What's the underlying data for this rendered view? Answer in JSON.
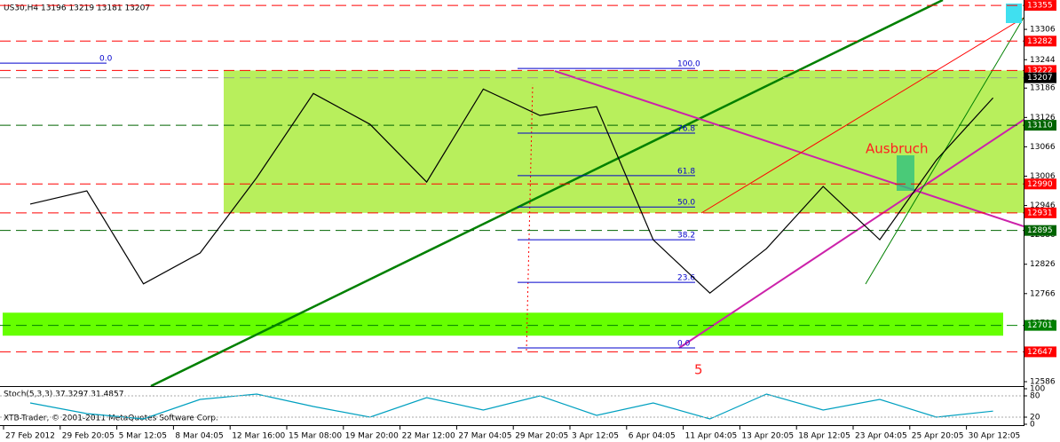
{
  "chart_data": [
    {
      "type": "line",
      "title": "US30,H4  13196 13219 13181 13207",
      "categories": [
        "27 Feb 2012",
        "29 Feb 20:05",
        "5 Mar 12:05",
        "8 Mar 04:05",
        "12 Mar 16:00",
        "15 Mar 08:00",
        "19 Mar 20:00",
        "22 Mar 12:00",
        "27 Mar 04:05",
        "29 Mar 20:05",
        "3 Apr 12:05",
        "6 Apr 04:05",
        "11 Apr 04:05",
        "13 Apr 20:05",
        "18 Apr 12:05",
        "23 Apr 04:05",
        "25 Apr 20:05",
        "30 Apr 12:05"
      ],
      "series": [
        {
          "color": "#000000",
          "values": [
            12949,
            12976,
            12786,
            12849,
            13003,
            13175,
            13112,
            12994,
            13184,
            13130,
            13148,
            12876,
            12767,
            12858,
            12985,
            12876,
            13039,
            13166
          ]
        }
      ],
      "ylim": [
        12577,
        13366
      ],
      "yticks": [
        13306,
        13244,
        13186,
        13126,
        13066,
        13006,
        12946,
        12886,
        12826,
        12766,
        12706,
        12646,
        12586
      ],
      "levels": [
        {
          "value": 13355,
          "color": "#ff0000"
        },
        {
          "value": 13282,
          "color": "#ff0000"
        },
        {
          "value": 13222,
          "color": "#ff0000"
        },
        {
          "value": 13207,
          "color": "#000000"
        },
        {
          "value": 13110,
          "color": "#006400"
        },
        {
          "value": 12990,
          "color": "#ff0000"
        },
        {
          "value": 12931,
          "color": "#ff0000"
        },
        {
          "value": 12895,
          "color": "#006400"
        },
        {
          "value": 12701,
          "color": "#008000"
        },
        {
          "value": 12647,
          "color": "#ff0000"
        }
      ],
      "zones": [
        {
          "from": 13222,
          "to": 12931,
          "color": "#b8ef5c"
        },
        {
          "from": 12727,
          "to": 12680,
          "color": "#66ff00"
        }
      ],
      "fibonacci": [
        {
          "label": "100.0",
          "value": 13226
        },
        {
          "label": "76.8",
          "value": 13094
        },
        {
          "label": "61.8",
          "value": 13007
        },
        {
          "label": "50.0",
          "value": 12943
        },
        {
          "label": "38.2",
          "value": 12876
        },
        {
          "label": "23.6",
          "value": 12789
        },
        {
          "label": "0.0",
          "value": 12655
        }
      ],
      "fib_start_label": {
        "label": "0.0",
        "value": 13237
      },
      "annotations": [
        "Ausbruch",
        "5"
      ],
      "footer": "XTB-Trader, © 2001-2011 MetaQuotes Software Corp."
    },
    {
      "type": "line",
      "title": "Stoch(5,3,3) 37.3297 31.4857",
      "series": [
        {
          "color": "#00a0c0",
          "values": [
            60,
            30,
            15,
            70,
            85,
            50,
            20,
            75,
            40,
            80,
            25,
            60,
            15,
            85,
            40,
            70,
            20,
            37
          ]
        }
      ],
      "ylim": [
        0,
        100
      ],
      "yticks": [
        100,
        80,
        20,
        0
      ]
    }
  ]
}
